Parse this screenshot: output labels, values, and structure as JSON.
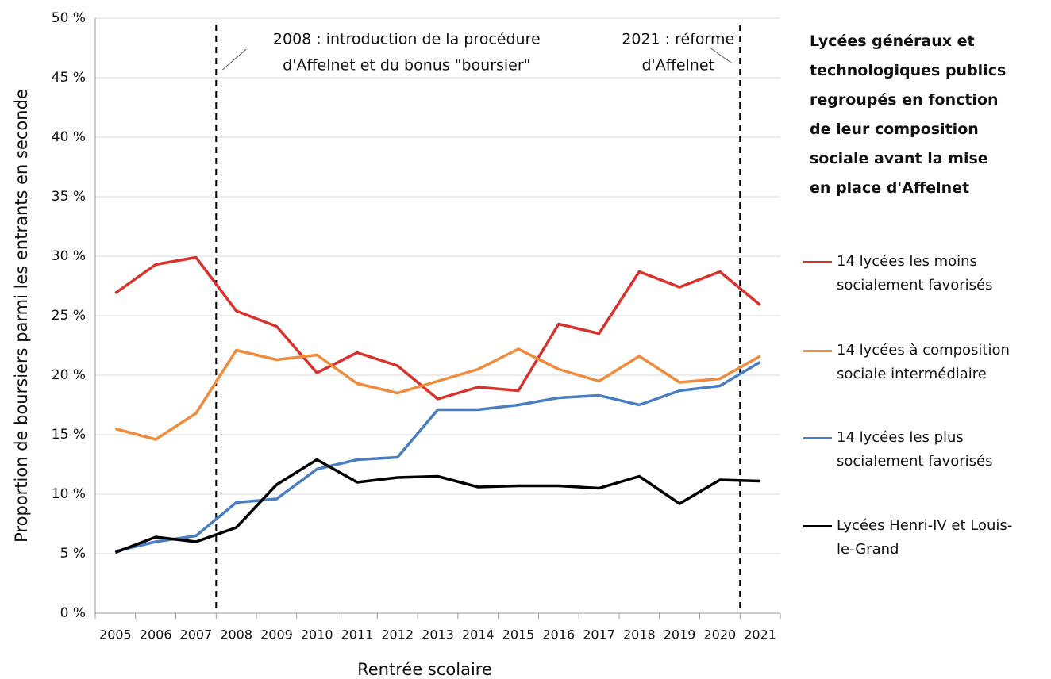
{
  "chart_data": {
    "type": "line",
    "title": [
      "Lycées généraux et",
      "technologiques publics",
      "regroupés en fonction",
      "de leur composition",
      "sociale avant la mise",
      "en place d'Affelnet"
    ],
    "x_label": "Rentrée scolaire",
    "y_label": "Proportion de boursiers parmi les entrants en seconde",
    "categories": [
      "2005",
      "2006",
      "2007",
      "2008",
      "2009",
      "2010",
      "2011",
      "2012",
      "2013",
      "2014",
      "2015",
      "2016",
      "2017",
      "2018",
      "2019",
      "2020",
      "2021"
    ],
    "ylim": [
      0,
      50
    ],
    "yticks": [
      {
        "value": 0,
        "label": "0 %"
      },
      {
        "value": 5,
        "label": "5 %"
      },
      {
        "value": 10,
        "label": "10 %"
      },
      {
        "value": 15,
        "label": "15 %"
      },
      {
        "value": 20,
        "label": "20 %"
      },
      {
        "value": 25,
        "label": "25 %"
      },
      {
        "value": 30,
        "label": "30 %"
      },
      {
        "value": 35,
        "label": "35 %"
      },
      {
        "value": 40,
        "label": "40 %"
      },
      {
        "value": 45,
        "label": "45 %"
      },
      {
        "value": 50,
        "label": "50 %"
      }
    ],
    "grid": true,
    "legend": "right",
    "annotations": [
      {
        "category": "2008",
        "text": [
          "2008 : introduction de la procédure",
          "d'Affelnet et du bonus \"boursier\""
        ]
      },
      {
        "category": "2021",
        "text": [
          "2021 : réforme",
          "d'Affelnet"
        ]
      }
    ],
    "series": [
      {
        "name": "14 lycées les moins socialement favorisés",
        "color": "#d9312b",
        "values": [
          26.9,
          29.3,
          29.9,
          25.4,
          24.1,
          20.2,
          21.9,
          20.8,
          18.0,
          19.0,
          18.7,
          24.3,
          23.5,
          28.7,
          27.4,
          28.7,
          25.9
        ]
      },
      {
        "name": "14 lycées à composition sociale intermédiaire",
        "color": "#ef8b3c",
        "values": [
          15.5,
          14.6,
          16.8,
          22.1,
          21.3,
          21.7,
          19.3,
          18.5,
          19.5,
          20.5,
          22.2,
          20.5,
          19.5,
          21.6,
          19.4,
          19.7,
          21.6
        ]
      },
      {
        "name": "14 lycées les plus socialement favorisés",
        "color": "#4a7ebf",
        "values": [
          5.2,
          6.0,
          6.5,
          9.3,
          9.6,
          12.1,
          12.9,
          13.1,
          17.1,
          17.1,
          17.5,
          18.1,
          18.3,
          17.5,
          18.7,
          19.1,
          21.1
        ]
      },
      {
        "name": "Lycées Henri-IV et Louis-le-Grand",
        "color": "#000000",
        "values": [
          5.1,
          6.4,
          6.0,
          7.2,
          10.8,
          12.9,
          11.0,
          11.4,
          11.5,
          10.6,
          10.7,
          10.7,
          10.5,
          11.5,
          9.2,
          11.2,
          11.1
        ]
      }
    ]
  }
}
